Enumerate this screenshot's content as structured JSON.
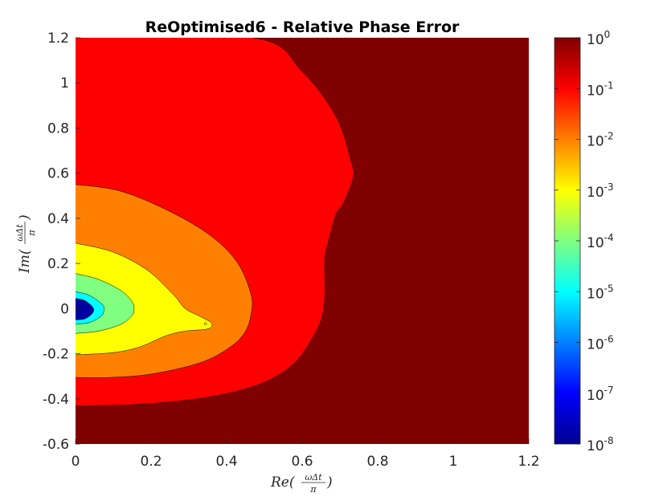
{
  "chart_data": {
    "type": "contourf",
    "title": "ReOptimised6 - Relative Phase Error",
    "xlabel": {
      "text": "Re(",
      "frac_num": "ωΔt",
      "frac_den": "π",
      "close": ")"
    },
    "ylabel": {
      "text": "Im(",
      "frac_num": "ωΔt",
      "frac_den": "π",
      "close": ")"
    },
    "xlim": [
      0,
      1.2
    ],
    "ylim": [
      -0.6,
      1.2
    ],
    "xticks": [
      "0",
      "0.2",
      "0.4",
      "0.6",
      "0.8",
      "1",
      "1.2"
    ],
    "yticks": [
      "-0.6",
      "-0.4",
      "-0.2",
      "0",
      "0.2",
      "0.4",
      "0.6",
      "0.8",
      "1",
      "1.2"
    ],
    "colorbar": {
      "scale": "log",
      "range": [
        1e-08,
        1
      ],
      "ticks": [
        {
          "base": "10",
          "exp": "0"
        },
        {
          "base": "10",
          "exp": "-1"
        },
        {
          "base": "10",
          "exp": "-2"
        },
        {
          "base": "10",
          "exp": "-3"
        },
        {
          "base": "10",
          "exp": "-4"
        },
        {
          "base": "10",
          "exp": "-5"
        },
        {
          "base": "10",
          "exp": "-6"
        },
        {
          "base": "10",
          "exp": "-7"
        },
        {
          "base": "10",
          "exp": "-8"
        }
      ],
      "colormap": "jet"
    },
    "background_level_color": "#800000",
    "levels": [
      {
        "name": "1e-1 to 1e0",
        "color": "#ff0000",
        "boundary": [
          [
            0,
            1.2
          ],
          [
            0.47,
            1.2
          ],
          [
            0.6,
            1.05
          ],
          [
            0.69,
            0.85
          ],
          [
            0.73,
            0.65
          ],
          [
            0.735,
            0.58
          ],
          [
            0.71,
            0.47
          ],
          [
            0.69,
            0.42
          ],
          [
            0.67,
            0.3
          ],
          [
            0.66,
            0.22
          ],
          [
            0.66,
            0.05
          ],
          [
            0.65,
            -0.05
          ],
          [
            0.62,
            -0.15
          ],
          [
            0.58,
            -0.24
          ],
          [
            0.52,
            -0.31
          ],
          [
            0.44,
            -0.36
          ],
          [
            0.32,
            -0.4
          ],
          [
            0.16,
            -0.425
          ],
          [
            0,
            -0.43
          ]
        ]
      },
      {
        "name": "1e-2 to 1e-1",
        "color": "#ff8000",
        "boundary": [
          [
            0,
            0.55
          ],
          [
            0.12,
            0.52
          ],
          [
            0.25,
            0.43
          ],
          [
            0.36,
            0.32
          ],
          [
            0.43,
            0.2
          ],
          [
            0.465,
            0.06
          ],
          [
            0.465,
            -0.02
          ],
          [
            0.45,
            -0.1
          ],
          [
            0.41,
            -0.17
          ],
          [
            0.33,
            -0.24
          ],
          [
            0.2,
            -0.29
          ],
          [
            0.09,
            -0.305
          ],
          [
            0,
            -0.305
          ]
        ]
      },
      {
        "name": "1e-3 to 1e-2",
        "color": "#ffff00",
        "boundary": [
          [
            0,
            0.29
          ],
          [
            0.1,
            0.25
          ],
          [
            0.19,
            0.17
          ],
          [
            0.26,
            0.06
          ],
          [
            0.29,
            0.0
          ],
          [
            0.33,
            -0.035
          ],
          [
            0.36,
            -0.065
          ],
          [
            0.35,
            -0.09
          ],
          [
            0.29,
            -0.1
          ],
          [
            0.24,
            -0.12
          ],
          [
            0.17,
            -0.17
          ],
          [
            0.1,
            -0.195
          ],
          [
            0,
            -0.205
          ]
        ]
      },
      {
        "name": "1e-4 to 1e-3",
        "color": "#80ff80",
        "boundary": [
          [
            0,
            0.155
          ],
          [
            0.06,
            0.13
          ],
          [
            0.12,
            0.08
          ],
          [
            0.15,
            0.03
          ],
          [
            0.155,
            0.0
          ],
          [
            0.15,
            -0.03
          ],
          [
            0.12,
            -0.07
          ],
          [
            0.06,
            -0.1
          ],
          [
            0,
            -0.11
          ]
        ]
      },
      {
        "name": "1e-5 to 1e-4",
        "color": "#00ffff",
        "boundary": [
          [
            0,
            0.075
          ],
          [
            0.035,
            0.06
          ],
          [
            0.07,
            0.02
          ],
          [
            0.075,
            0.0
          ],
          [
            0.07,
            -0.03
          ],
          [
            0.04,
            -0.06
          ],
          [
            0,
            -0.07
          ]
        ]
      },
      {
        "name": "1e-7 to 1e-6",
        "color": "#0000a0",
        "boundary": [
          [
            0,
            0.045
          ],
          [
            0.025,
            0.035
          ],
          [
            0.046,
            0.005
          ],
          [
            0.045,
            -0.02
          ],
          [
            0.025,
            -0.045
          ],
          [
            0,
            -0.05
          ]
        ]
      }
    ],
    "grid": false
  }
}
